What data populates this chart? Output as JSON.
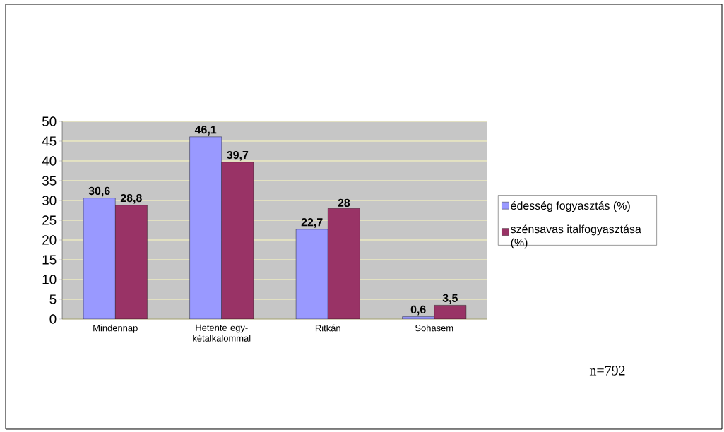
{
  "chart_data": {
    "type": "bar",
    "categories": [
      "Mindennap",
      "Hetente egy-kétalkalommal",
      "Ritkán",
      "Sohasem"
    ],
    "series": [
      {
        "name": "édesség fogyasztás (%)",
        "color": "#9999ff",
        "values": [
          30.6,
          46.1,
          22.7,
          0.6
        ],
        "value_labels": [
          "30,6",
          "46,1",
          "22,7",
          "0,6"
        ]
      },
      {
        "name": "szénsavas italfogyasztása (%)",
        "color": "#993366",
        "values": [
          28.8,
          39.7,
          28,
          3.5
        ],
        "value_labels": [
          "28,8",
          "39,7",
          "28",
          "3,5"
        ]
      }
    ],
    "ylim": [
      0,
      50
    ],
    "yticks": [
      0,
      5,
      10,
      15,
      20,
      25,
      30,
      35,
      40,
      45,
      50
    ],
    "grid": "y",
    "legend": "right",
    "annotations": [
      "n=792"
    ]
  }
}
